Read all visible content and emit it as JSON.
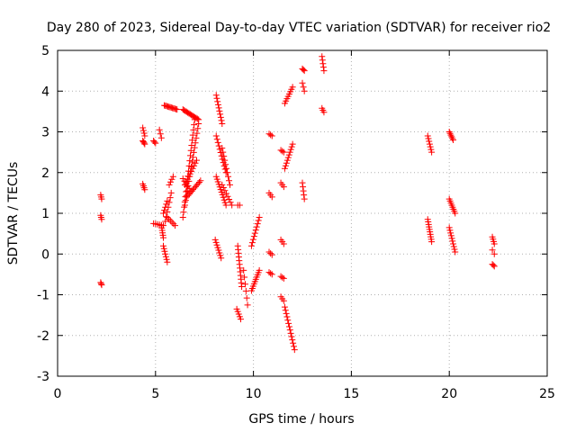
{
  "chart_data": {
    "type": "scatter",
    "title": "Day 280 of 2023, Sidereal Day-to-day VTEC variation (SDTVAR) for receiver rio2",
    "xlabel": "GPS time / hours",
    "ylabel": "SDTVAR / TECUs",
    "xlim": [
      0,
      25
    ],
    "ylim": [
      -3,
      5
    ],
    "xticks": [
      0,
      5,
      10,
      15,
      20,
      25
    ],
    "yticks": [
      -3,
      -2,
      -1,
      0,
      1,
      2,
      3,
      4,
      5
    ],
    "xtick_labels": [
      "0",
      "5",
      "10",
      "15",
      "20",
      "25"
    ],
    "ytick_labels": [
      "-3",
      "-2",
      "-1",
      "0",
      "1",
      "2",
      "3",
      "4",
      "5"
    ],
    "grid": true,
    "marker": "+",
    "marker_color": "#ff0000",
    "segments": [
      {
        "x0": 2.2,
        "x1": 2.25,
        "y0": 1.45,
        "y1": 1.35,
        "n": 3
      },
      {
        "x0": 2.2,
        "x1": 2.25,
        "y0": 0.95,
        "y1": 0.85,
        "n": 3
      },
      {
        "x0": 2.2,
        "x1": 2.25,
        "y0": -0.7,
        "y1": -0.76,
        "n": 3
      },
      {
        "x0": 4.35,
        "x1": 4.45,
        "y0": 3.1,
        "y1": 2.9,
        "n": 4
      },
      {
        "x0": 4.35,
        "x1": 4.45,
        "y0": 2.78,
        "y1": 2.7,
        "n": 4
      },
      {
        "x0": 4.35,
        "x1": 4.45,
        "y0": 1.72,
        "y1": 1.58,
        "n": 4
      },
      {
        "x0": 4.9,
        "x1": 5.0,
        "y0": 2.78,
        "y1": 2.72,
        "n": 3
      },
      {
        "x0": 5.2,
        "x1": 5.3,
        "y0": 3.05,
        "y1": 2.85,
        "n": 3
      },
      {
        "x0": 4.9,
        "x1": 5.4,
        "y0": 0.75,
        "y1": 0.7,
        "n": 6
      },
      {
        "x0": 5.3,
        "x1": 5.4,
        "y0": 0.7,
        "y1": 0.4,
        "n": 6
      },
      {
        "x0": 5.4,
        "x1": 5.6,
        "y0": 1.0,
        "y1": 1.3,
        "n": 5
      },
      {
        "x0": 5.4,
        "x1": 5.6,
        "y0": 0.2,
        "y1": -0.2,
        "n": 7
      },
      {
        "x0": 5.45,
        "x1": 6.1,
        "y0": 3.65,
        "y1": 3.55,
        "n": 12
      },
      {
        "x0": 5.5,
        "x1": 5.8,
        "y0": 0.8,
        "y1": 1.5,
        "n": 7
      },
      {
        "x0": 5.7,
        "x1": 5.9,
        "y0": 1.7,
        "y1": 1.9,
        "n": 4
      },
      {
        "x0": 5.6,
        "x1": 6.0,
        "y0": 0.9,
        "y1": 0.7,
        "n": 6
      },
      {
        "x0": 6.4,
        "x1": 7.2,
        "y0": 3.55,
        "y1": 3.3,
        "n": 14
      },
      {
        "x0": 6.4,
        "x1": 7.0,
        "y0": 0.9,
        "y1": 3.3,
        "n": 20
      },
      {
        "x0": 6.5,
        "x1": 7.2,
        "y0": 1.2,
        "y1": 3.2,
        "n": 18
      },
      {
        "x0": 6.5,
        "x1": 7.1,
        "y0": 1.7,
        "y1": 2.3,
        "n": 10
      },
      {
        "x0": 6.6,
        "x1": 7.3,
        "y0": 1.4,
        "y1": 1.8,
        "n": 12
      },
      {
        "x0": 6.4,
        "x1": 6.8,
        "y0": 1.85,
        "y1": 1.55,
        "n": 6
      },
      {
        "x0": 8.1,
        "x1": 8.4,
        "y0": 3.9,
        "y1": 3.2,
        "n": 10
      },
      {
        "x0": 8.1,
        "x1": 8.6,
        "y0": 2.9,
        "y1": 2.0,
        "n": 12
      },
      {
        "x0": 8.1,
        "x1": 8.6,
        "y0": 1.9,
        "y1": 1.2,
        "n": 12
      },
      {
        "x0": 8.4,
        "x1": 8.8,
        "y0": 2.6,
        "y1": 1.7,
        "n": 10
      },
      {
        "x0": 8.4,
        "x1": 8.9,
        "y0": 1.7,
        "y1": 1.2,
        "n": 8
      },
      {
        "x0": 8.05,
        "x1": 8.35,
        "y0": 0.35,
        "y1": -0.1,
        "n": 8
      },
      {
        "x0": 9.2,
        "x1": 9.3,
        "y0": 1.2,
        "y1": 1.2,
        "n": 2
      },
      {
        "x0": 9.2,
        "x1": 9.4,
        "y0": 0.2,
        "y1": -0.8,
        "n": 12
      },
      {
        "x0": 9.15,
        "x1": 9.35,
        "y0": -1.35,
        "y1": -1.6,
        "n": 5
      },
      {
        "x0": 9.5,
        "x1": 9.7,
        "y0": -0.4,
        "y1": -1.25,
        "n": 6
      },
      {
        "x0": 9.9,
        "x1": 10.3,
        "y0": 0.2,
        "y1": 0.9,
        "n": 10
      },
      {
        "x0": 9.9,
        "x1": 10.3,
        "y0": -0.9,
        "y1": -0.4,
        "n": 10
      },
      {
        "x0": 10.8,
        "x1": 10.95,
        "y0": 2.95,
        "y1": 2.9,
        "n": 3
      },
      {
        "x0": 10.8,
        "x1": 10.95,
        "y0": 1.5,
        "y1": 1.4,
        "n": 3
      },
      {
        "x0": 10.8,
        "x1": 10.95,
        "y0": 0.05,
        "y1": -0.02,
        "n": 3
      },
      {
        "x0": 10.8,
        "x1": 10.95,
        "y0": -0.45,
        "y1": -0.5,
        "n": 3
      },
      {
        "x0": 11.4,
        "x1": 11.55,
        "y0": 2.55,
        "y1": 2.5,
        "n": 3
      },
      {
        "x0": 11.4,
        "x1": 11.55,
        "y0": 1.75,
        "y1": 1.65,
        "n": 3
      },
      {
        "x0": 11.4,
        "x1": 11.55,
        "y0": 0.35,
        "y1": 0.25,
        "n": 3
      },
      {
        "x0": 11.4,
        "x1": 11.55,
        "y0": -0.55,
        "y1": -0.6,
        "n": 3
      },
      {
        "x0": 11.4,
        "x1": 11.55,
        "y0": -1.05,
        "y1": -1.15,
        "n": 3
      },
      {
        "x0": 11.6,
        "x1": 12.0,
        "y0": 2.1,
        "y1": 2.7,
        "n": 10
      },
      {
        "x0": 11.6,
        "x1": 12.0,
        "y0": 3.7,
        "y1": 4.1,
        "n": 8
      },
      {
        "x0": 11.6,
        "x1": 12.1,
        "y0": -1.3,
        "y1": -2.35,
        "n": 14
      },
      {
        "x0": 12.5,
        "x1": 12.6,
        "y0": 4.55,
        "y1": 4.5,
        "n": 3
      },
      {
        "x0": 12.5,
        "x1": 12.6,
        "y0": 4.2,
        "y1": 4.0,
        "n": 3
      },
      {
        "x0": 12.5,
        "x1": 12.6,
        "y0": 1.75,
        "y1": 1.35,
        "n": 5
      },
      {
        "x0": 13.5,
        "x1": 13.6,
        "y0": 4.85,
        "y1": 4.5,
        "n": 5
      },
      {
        "x0": 13.5,
        "x1": 13.6,
        "y0": 3.58,
        "y1": 3.48,
        "n": 3
      },
      {
        "x0": 18.9,
        "x1": 19.1,
        "y0": 2.9,
        "y1": 2.5,
        "n": 7
      },
      {
        "x0": 18.9,
        "x1": 19.1,
        "y0": 0.85,
        "y1": 0.3,
        "n": 10
      },
      {
        "x0": 20.0,
        "x1": 20.2,
        "y0": 3.0,
        "y1": 2.8,
        "n": 6
      },
      {
        "x0": 20.0,
        "x1": 20.3,
        "y0": 1.35,
        "y1": 1.0,
        "n": 8
      },
      {
        "x0": 20.0,
        "x1": 20.3,
        "y0": 0.65,
        "y1": 0.05,
        "n": 10
      },
      {
        "x0": 22.2,
        "x1": 22.3,
        "y0": 0.42,
        "y1": 0.25,
        "n": 4
      },
      {
        "x0": 22.2,
        "x1": 22.3,
        "y0": 0.1,
        "y1": 0.0,
        "n": 2
      },
      {
        "x0": 22.2,
        "x1": 22.3,
        "y0": -0.25,
        "y1": -0.3,
        "n": 3
      }
    ]
  }
}
